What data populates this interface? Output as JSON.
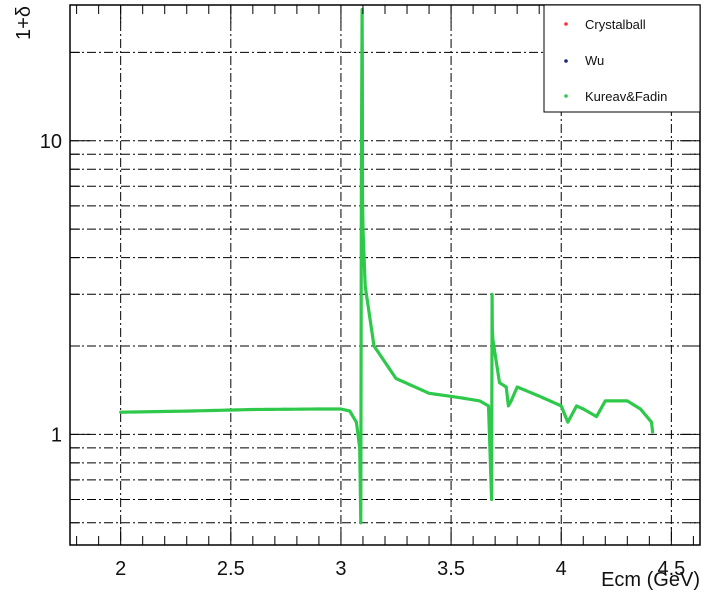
{
  "chart_data": {
    "type": "line",
    "xlabel": "Ecm (GeV)",
    "ylabel": "1+δ",
    "xlim": [
      1.77,
      4.63
    ],
    "ylim": [
      0.42,
      29
    ],
    "yscale": "log",
    "grid": true,
    "legend_position": "top-right",
    "x_ticks": [
      "2",
      "2.5",
      "3",
      "3.5",
      "4",
      "4.5"
    ],
    "y_ticks": [
      "1",
      "10"
    ],
    "series": [
      {
        "name": "Crystalball",
        "color": "#ff3030",
        "x": [
          2.0,
          2.3,
          2.6,
          2.9,
          3.0,
          3.04,
          3.07,
          3.085,
          3.09,
          3.093,
          3.096,
          3.097,
          3.098,
          3.1,
          3.11,
          3.15,
          3.25,
          3.4,
          3.55,
          3.63,
          3.67,
          3.684,
          3.686,
          3.687,
          3.69,
          3.72,
          3.75,
          3.76,
          3.773,
          3.8,
          3.9,
          4.0,
          4.03,
          4.07,
          4.1,
          4.16,
          4.2,
          4.3,
          4.36,
          4.41,
          4.415
        ],
        "y": [
          1.19,
          1.2,
          1.215,
          1.22,
          1.22,
          1.2,
          1.1,
          0.9,
          0.5,
          8,
          28,
          20,
          6.5,
          5.0,
          3.2,
          2.0,
          1.55,
          1.38,
          1.33,
          1.3,
          1.25,
          0.6,
          3.0,
          2.3,
          2.1,
          1.5,
          1.45,
          1.25,
          1.3,
          1.45,
          1.35,
          1.25,
          1.1,
          1.25,
          1.22,
          1.15,
          1.3,
          1.3,
          1.22,
          1.1,
          1.02
        ]
      },
      {
        "name": "Wu",
        "color": "#1a237e",
        "x": [
          2.0,
          2.3,
          2.6,
          2.9,
          3.0,
          3.04,
          3.07,
          3.085,
          3.09,
          3.093,
          3.096,
          3.097,
          3.098,
          3.1,
          3.11,
          3.15,
          3.25,
          3.4,
          3.55,
          3.63,
          3.67,
          3.684,
          3.686,
          3.687,
          3.69,
          3.72,
          3.75,
          3.76,
          3.773,
          3.8,
          3.9,
          4.0,
          4.03,
          4.07,
          4.1,
          4.16,
          4.2,
          4.3,
          4.36,
          4.41,
          4.415
        ],
        "y": [
          1.19,
          1.2,
          1.215,
          1.22,
          1.22,
          1.2,
          1.1,
          0.9,
          0.5,
          8,
          28,
          20,
          6.5,
          5.0,
          3.2,
          2.0,
          1.55,
          1.38,
          1.33,
          1.3,
          1.25,
          0.6,
          3.0,
          2.3,
          2.1,
          1.5,
          1.45,
          1.25,
          1.3,
          1.45,
          1.35,
          1.25,
          1.1,
          1.25,
          1.22,
          1.15,
          1.3,
          1.3,
          1.22,
          1.1,
          1.02
        ]
      },
      {
        "name": "Kureav&Fadin",
        "color": "#2ec84a",
        "x": [
          2.0,
          2.3,
          2.6,
          2.9,
          3.0,
          3.04,
          3.07,
          3.085,
          3.09,
          3.093,
          3.096,
          3.097,
          3.098,
          3.1,
          3.11,
          3.15,
          3.25,
          3.4,
          3.55,
          3.63,
          3.67,
          3.684,
          3.686,
          3.687,
          3.69,
          3.72,
          3.75,
          3.76,
          3.773,
          3.8,
          3.9,
          4.0,
          4.03,
          4.07,
          4.1,
          4.16,
          4.2,
          4.3,
          4.36,
          4.41,
          4.415
        ],
        "y": [
          1.19,
          1.2,
          1.215,
          1.22,
          1.22,
          1.2,
          1.1,
          0.9,
          0.5,
          8,
          28,
          20,
          6.5,
          5.0,
          3.2,
          2.0,
          1.55,
          1.38,
          1.33,
          1.3,
          1.25,
          0.6,
          3.0,
          2.3,
          2.1,
          1.5,
          1.45,
          1.25,
          1.3,
          1.45,
          1.35,
          1.25,
          1.1,
          1.25,
          1.22,
          1.15,
          1.3,
          1.3,
          1.22,
          1.1,
          1.02
        ]
      }
    ]
  }
}
